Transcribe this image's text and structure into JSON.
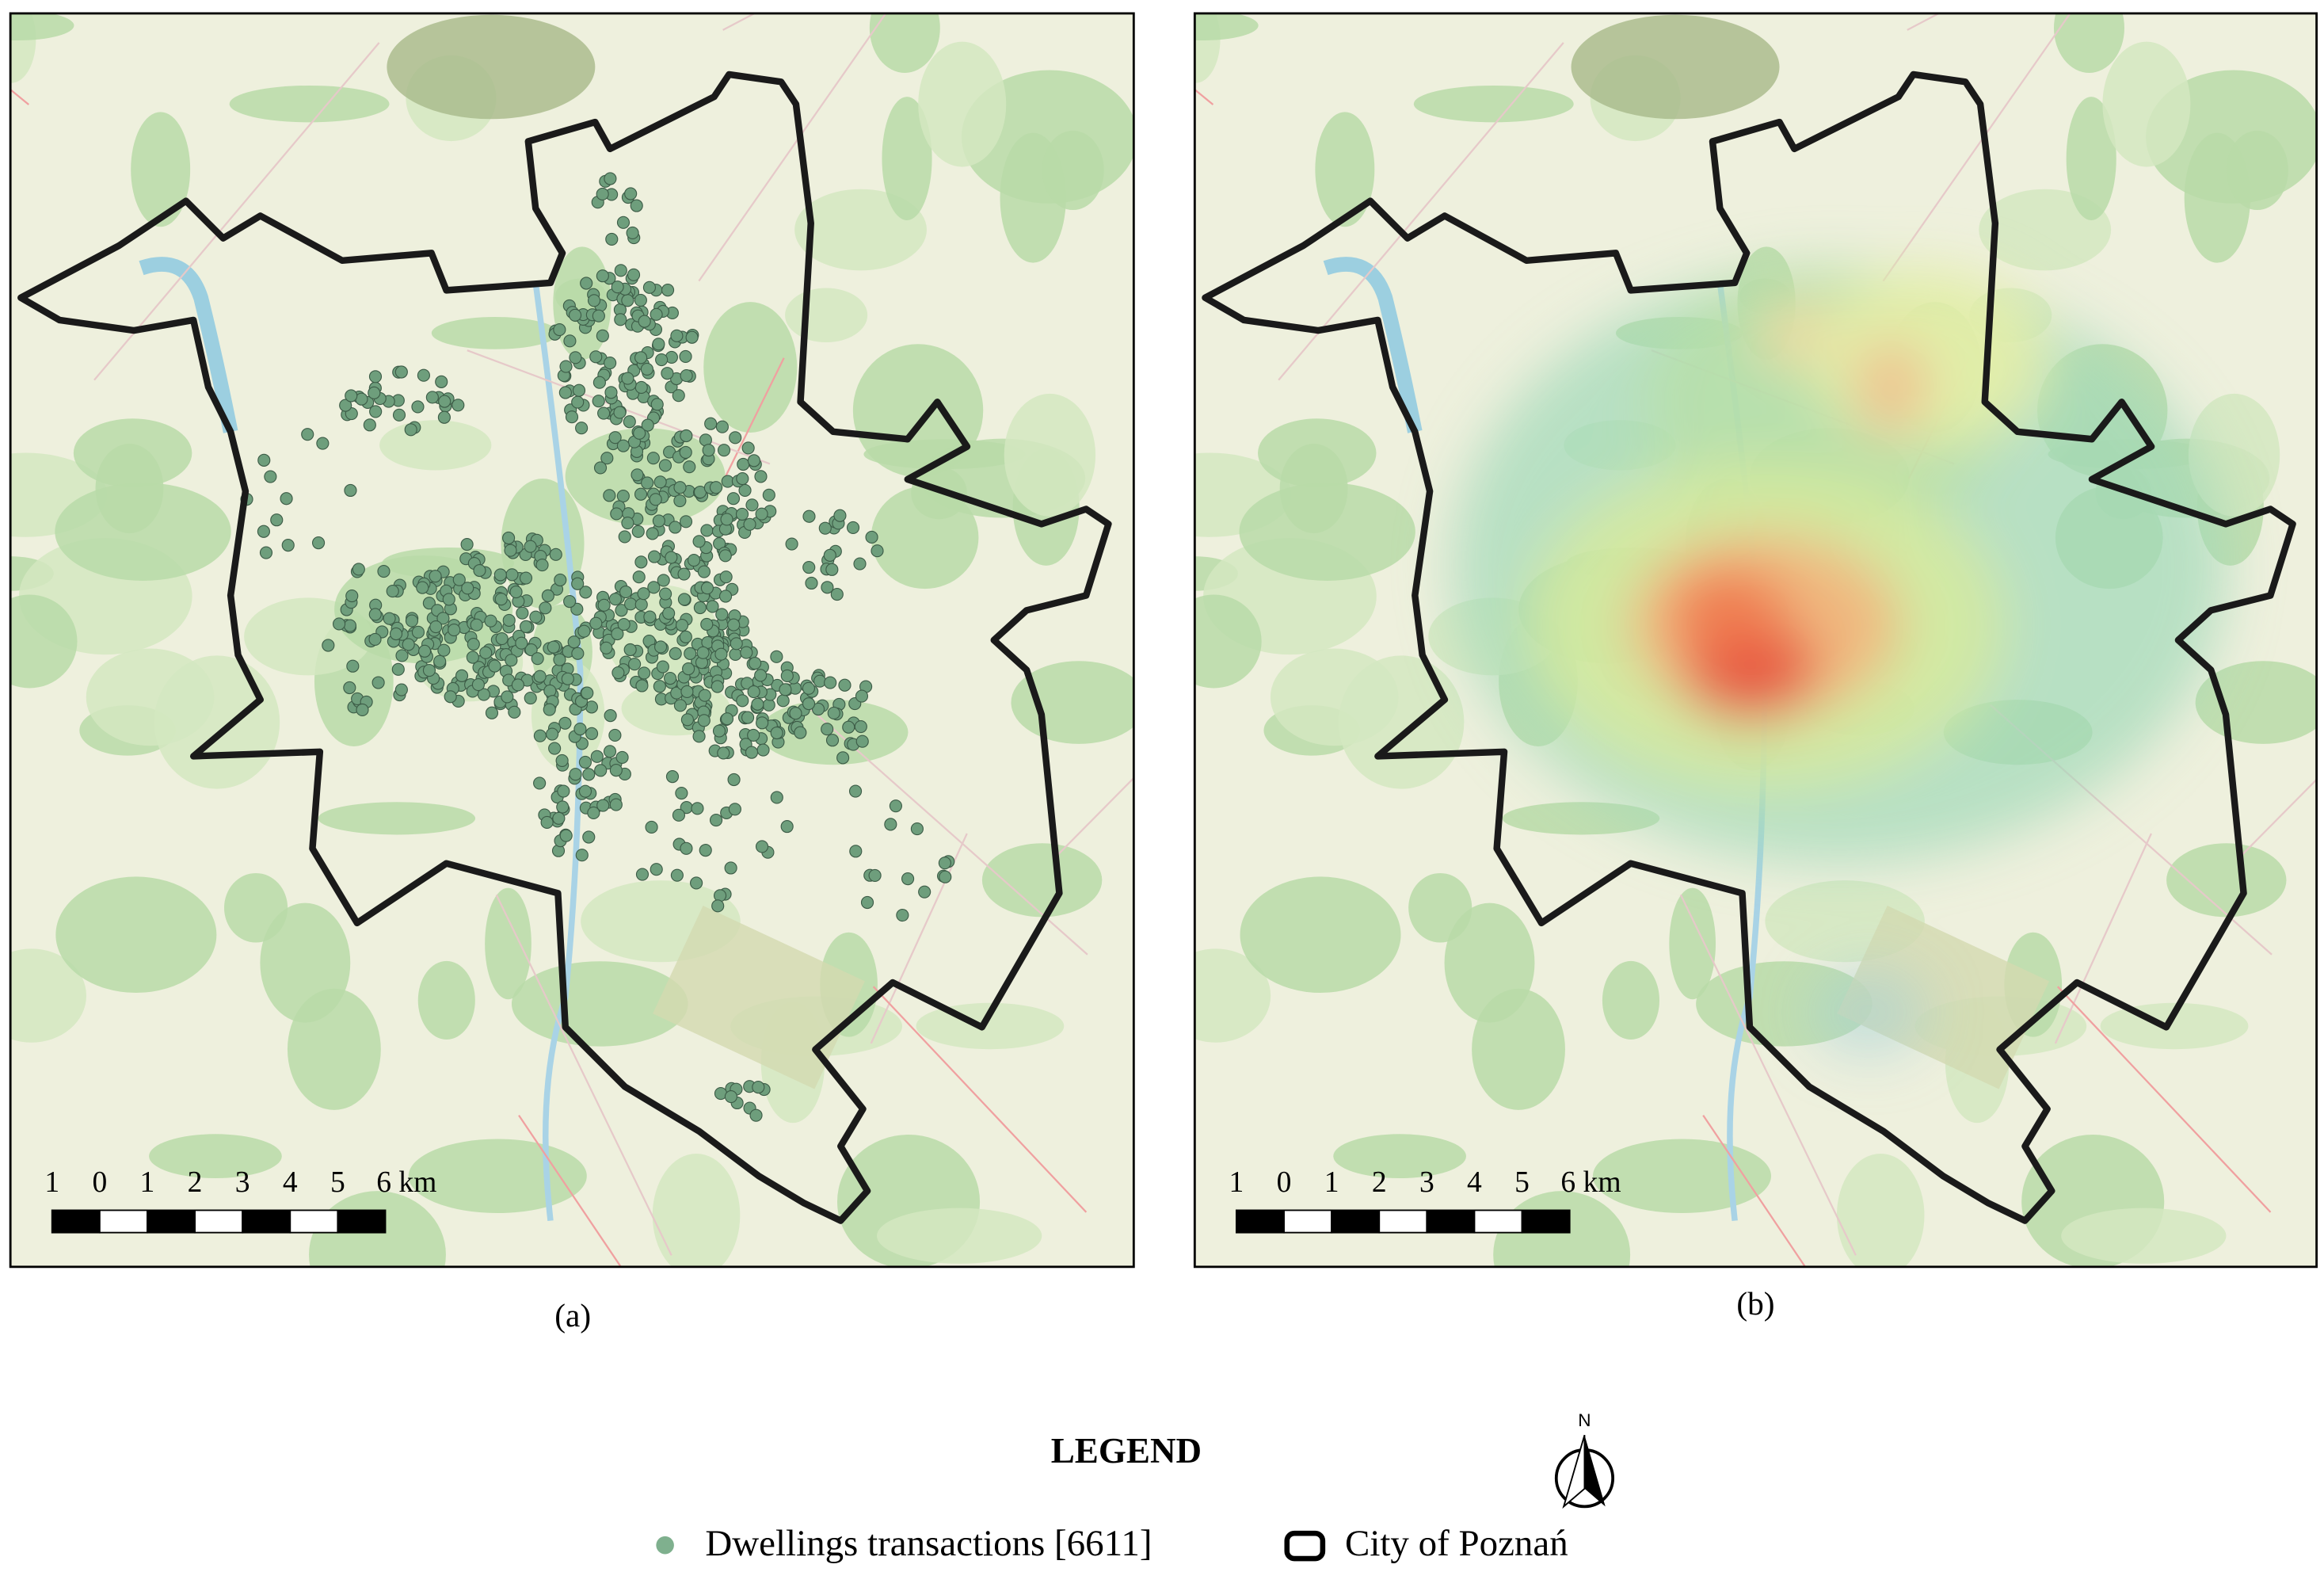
{
  "panels": [
    {
      "caption": "(a)",
      "scale_labels": [
        "1",
        "0",
        "1",
        "2",
        "3",
        "4",
        "5",
        "6 km"
      ]
    },
    {
      "caption": "(b)",
      "scale_labels": [
        "1",
        "0",
        "1",
        "2",
        "3",
        "4",
        "5",
        "6 km"
      ]
    }
  ],
  "legend": {
    "title": "LEGEND",
    "items": [
      "Dwellings transactions [6611]",
      "City of Poznań"
    ]
  },
  "north_arrow": {
    "label": "N"
  }
}
